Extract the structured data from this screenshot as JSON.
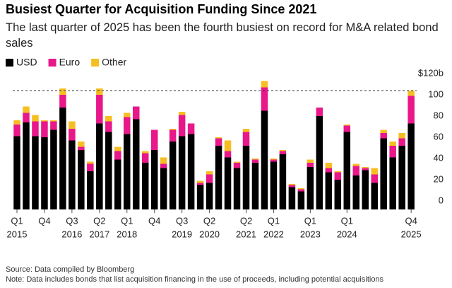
{
  "chart_data": {
    "type": "stacked_bar",
    "title": "Busiest Quarter for Acquisition Funding Since 2021",
    "subtitle": "The last quarter of 2025 has been the fourth busiest on record for M&A related bond sales",
    "categories": [
      "Q1",
      null,
      null,
      "Q4",
      null,
      null,
      "Q3",
      null,
      null,
      "Q2",
      null,
      null,
      "Q1",
      null,
      null,
      "Q4",
      null,
      null,
      "Q3",
      null,
      null,
      "Q2",
      null,
      null,
      null,
      "Q2",
      null,
      null,
      "Q1",
      null,
      null,
      null,
      "Q1",
      null,
      null,
      null,
      "Q1",
      null,
      null,
      null,
      null,
      null,
      null,
      "Q4"
    ],
    "category_years": [
      "2015",
      null,
      null,
      null,
      null,
      null,
      "2016",
      null,
      null,
      "2017",
      null,
      null,
      "2018",
      null,
      null,
      null,
      null,
      null,
      "2019",
      null,
      null,
      "2020",
      null,
      null,
      null,
      "2021",
      null,
      null,
      "2022",
      null,
      null,
      null,
      "2023",
      null,
      null,
      null,
      "2024",
      null,
      null,
      null,
      null,
      null,
      null,
      "2025"
    ],
    "series": [
      {
        "name": "USD",
        "color": "#000000",
        "values": [
          69,
          82,
          69,
          68,
          75,
          96,
          65,
          56,
          36,
          81,
          73,
          47,
          71,
          85,
          44,
          56,
          39,
          64,
          69,
          71,
          23,
          25,
          60,
          49,
          39,
          60,
          44,
          93,
          45,
          52,
          21,
          17,
          40,
          88,
          35,
          28,
          73,
          32,
          37,
          25,
          67,
          49,
          60,
          81
        ]
      },
      {
        "name": "Euro",
        "color": "#e8178a",
        "values": [
          11,
          9,
          14,
          15,
          8,
          12,
          11,
          3,
          7,
          27,
          10,
          8,
          16,
          12,
          9,
          19,
          4,
          11,
          20,
          10,
          2,
          8,
          7,
          6,
          5,
          13,
          3,
          22,
          2,
          3,
          2,
          2,
          4,
          8,
          4,
          7,
          6,
          9,
          2,
          8,
          5,
          11,
          7,
          26
        ]
      },
      {
        "name": "Other",
        "color": "#f5bf23",
        "values": [
          4,
          6,
          6,
          1,
          1,
          6,
          7,
          5,
          2,
          6,
          5,
          4,
          4,
          0,
          2,
          0,
          6,
          1,
          3,
          0,
          2,
          3,
          1,
          10,
          1,
          3,
          1,
          6,
          1,
          1,
          1,
          1,
          3,
          0,
          5,
          1,
          1,
          2,
          1,
          6,
          3,
          4,
          5,
          5
        ]
      }
    ],
    "ylim": [
      0,
      125
    ],
    "yticks": [
      0,
      20,
      40,
      60,
      80,
      100,
      {
        "value": 120,
        "label": "$120b"
      }
    ],
    "reference_line": 112,
    "grid": false,
    "legend": "top-left",
    "source": "Source: Data compiled by Bloomberg",
    "note": "Note: Data includes bonds that list acquisition financing in the use of proceeds, including potential acquisitions"
  }
}
